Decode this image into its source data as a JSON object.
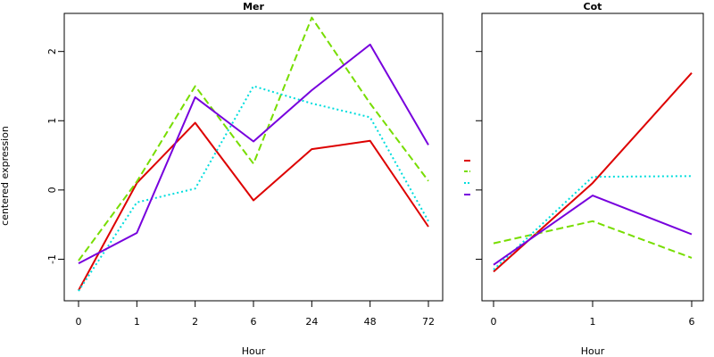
{
  "colors": {
    "red": "#dd0000",
    "green": "#77dd00",
    "cyan": "#00dddd",
    "purple": "#7700dd"
  },
  "ylabel": "centered expression",
  "chart_data": [
    {
      "type": "line",
      "title": "Mer",
      "xlabel": "Hour",
      "categories": [
        "0",
        "1",
        "2",
        "6",
        "24",
        "48",
        "72"
      ],
      "ylim": [
        -1.6,
        2.55
      ],
      "yticks": [
        -1,
        0,
        1,
        2
      ],
      "series": [
        {
          "color": "#dd0000",
          "dash": "solid",
          "values": [
            -1.45,
            0.1,
            0.97,
            -0.15,
            0.59,
            0.71,
            -0.53
          ]
        },
        {
          "color": "#77dd00",
          "dash": "dashed",
          "values": [
            -1.02,
            0.12,
            1.5,
            0.38,
            2.49,
            1.25,
            0.13
          ]
        },
        {
          "color": "#00dddd",
          "dash": "dotted",
          "values": [
            -1.46,
            -0.18,
            0.02,
            1.5,
            1.25,
            1.05,
            -0.45
          ]
        },
        {
          "color": "#7700dd",
          "dash": "solid",
          "values": [
            -1.06,
            -0.62,
            1.34,
            0.7,
            1.44,
            2.1,
            0.65
          ]
        }
      ]
    },
    {
      "type": "line",
      "title": "Cot",
      "xlabel": "Hour",
      "categories": [
        "0",
        "1",
        "6"
      ],
      "ylim": [
        -1.6,
        2.55
      ],
      "yticks": [
        -1,
        0,
        1,
        2
      ],
      "series": [
        {
          "color": "#dd0000",
          "dash": "solid",
          "values": [
            -1.18,
            0.1,
            1.69
          ]
        },
        {
          "color": "#77dd00",
          "dash": "dashed",
          "values": [
            -0.77,
            -0.45,
            -0.98
          ]
        },
        {
          "color": "#00dddd",
          "dash": "dotted",
          "values": [
            -1.15,
            0.19,
            0.2
          ]
        },
        {
          "color": "#7700dd",
          "dash": "solid",
          "values": [
            -1.08,
            -0.08,
            -0.64
          ]
        }
      ]
    }
  ]
}
